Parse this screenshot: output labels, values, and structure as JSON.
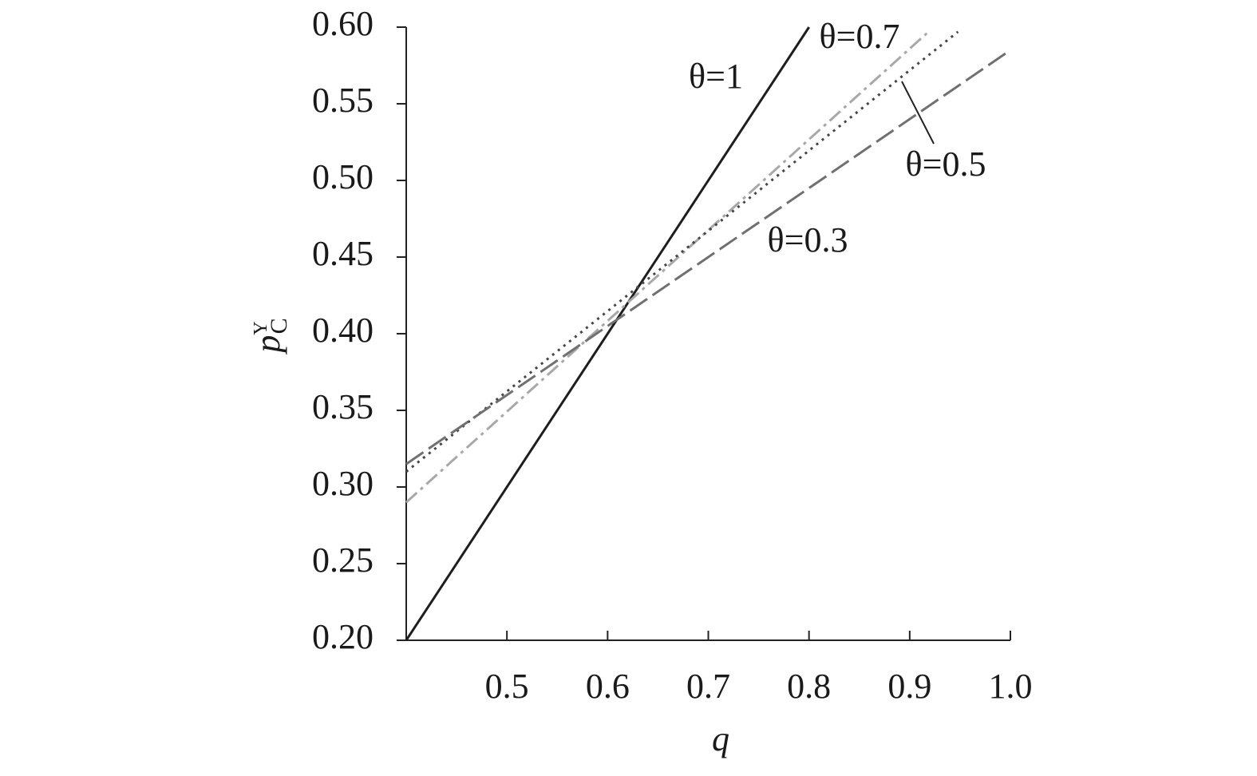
{
  "chart_data": {
    "type": "line",
    "x_label": "q",
    "y_label": {
      "base": "p",
      "sub": "C",
      "sup": "Y"
    },
    "xlim": [
      0.4,
      1.0
    ],
    "xticks": [
      0.5,
      0.6,
      0.7,
      0.8,
      0.9,
      {
        "value": 1.0,
        "label": "1.0"
      }
    ],
    "ylim": [
      0.2,
      0.6
    ],
    "yticks": [
      {
        "value": 0.2,
        "label": "0.20"
      },
      {
        "value": 0.25,
        "label": "0.25"
      },
      {
        "value": 0.3,
        "label": "0.30"
      },
      {
        "value": 0.35,
        "label": "0.35"
      },
      {
        "value": 0.4,
        "label": "0.40"
      },
      {
        "value": 0.45,
        "label": "0.45"
      },
      {
        "value": 0.5,
        "label": "0.50"
      },
      {
        "value": 0.55,
        "label": "0.55"
      },
      {
        "value": 0.6,
        "label": "0.60"
      }
    ],
    "grid": false,
    "series": [
      {
        "name": "θ=1",
        "color": "#1e1e1e",
        "line_style": "solid",
        "x": [
          0.4,
          0.8
        ],
        "values": [
          0.2,
          0.6
        ]
      },
      {
        "name": "θ=0.7",
        "color": "#a8a8a8",
        "line_style": "dashdot",
        "x": [
          0.4,
          0.917
        ],
        "values": [
          0.29,
          0.596
        ]
      },
      {
        "name": "θ=0.5",
        "color": "#454545",
        "line_style": "dotted",
        "x": [
          0.4,
          0.948
        ],
        "values": [
          0.31,
          0.597
        ]
      },
      {
        "name": "θ=0.3",
        "color": "#707070",
        "line_style": "dashed",
        "x": [
          0.4,
          1.0
        ],
        "values": [
          0.315,
          0.585
        ]
      }
    ]
  }
}
